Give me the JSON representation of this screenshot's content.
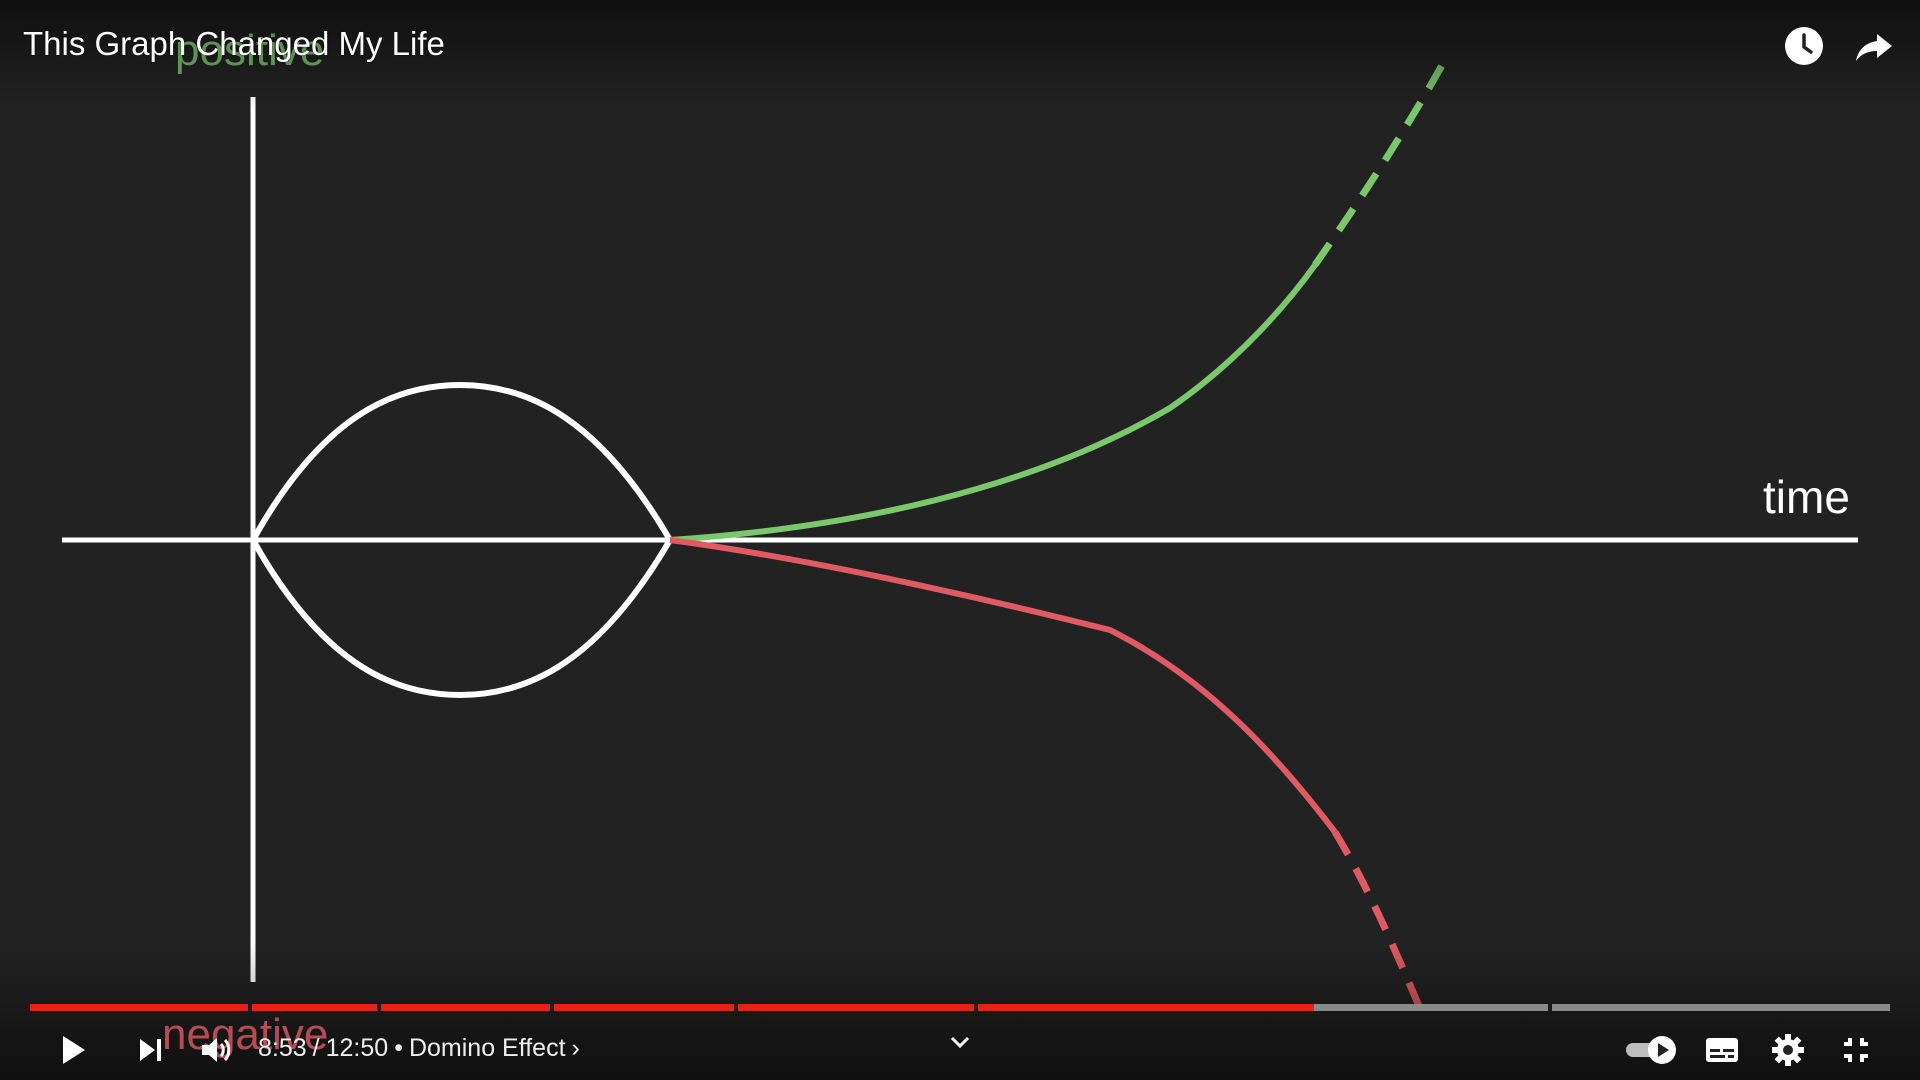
{
  "video": {
    "title": "This Graph Changed My Life",
    "current_time": "8:53",
    "separator": "/",
    "duration": "12:50",
    "chapter_dot": "•",
    "chapter": "Domino Effect",
    "chapter_chevron": "›",
    "played_fraction": 0.6935
  },
  "graph_labels": {
    "positive": "positive",
    "negative": "negative",
    "time": "time"
  },
  "colors": {
    "accent_progress": "#e62117",
    "positive_curve": "#7bc86c",
    "negative_curve": "#e05a63",
    "axes": "#ffffff"
  },
  "icons": {
    "watch_later": "clock-icon",
    "share": "share-icon",
    "play": "play-icon",
    "next": "next-icon",
    "volume": "volume-icon",
    "more": "chevron-down-icon",
    "autoplay": "autoplay-toggle-icon",
    "captions": "captions-icon",
    "settings": "gear-icon",
    "exit_fullscreen": "exit-fullscreen-icon"
  }
}
